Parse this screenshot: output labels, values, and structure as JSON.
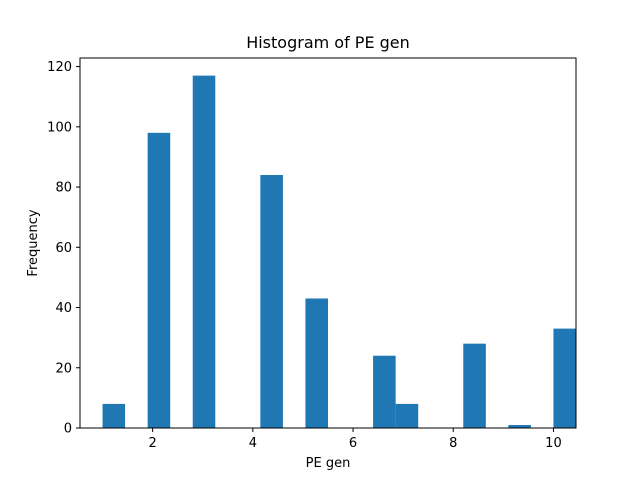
{
  "chart_data": {
    "type": "bar",
    "title": "Histogram of PE gen",
    "xlabel": "PE gen",
    "ylabel": "Frequency",
    "xlim": [
      0.55,
      10.45
    ],
    "ylim": [
      0,
      122.85
    ],
    "x_ticks": [
      2,
      4,
      6,
      8,
      10
    ],
    "y_ticks": [
      0,
      20,
      40,
      60,
      80,
      100,
      120
    ],
    "bin_width": 0.45,
    "bins": [
      {
        "start": 1.0,
        "value": 8
      },
      {
        "start": 1.9,
        "value": 98
      },
      {
        "start": 2.8,
        "value": 117
      },
      {
        "start": 3.7,
        "value": 0
      },
      {
        "start": 4.15,
        "value": 84
      },
      {
        "start": 4.6,
        "value": 0
      },
      {
        "start": 5.05,
        "value": 43
      },
      {
        "start": 5.5,
        "value": 0
      },
      {
        "start": 5.95,
        "value": 0
      },
      {
        "start": 6.4,
        "value": 24
      },
      {
        "start": 6.85,
        "value": 8
      },
      {
        "start": 7.3,
        "value": 0
      },
      {
        "start": 7.75,
        "value": 0
      },
      {
        "start": 8.2,
        "value": 28
      },
      {
        "start": 8.65,
        "value": 0
      },
      {
        "start": 9.1,
        "value": 1
      },
      {
        "start": 9.55,
        "value": 0
      },
      {
        "start": 10.0,
        "value": 33
      }
    ],
    "bar_color": "#1f77b4",
    "grid": false,
    "legend": "none"
  }
}
